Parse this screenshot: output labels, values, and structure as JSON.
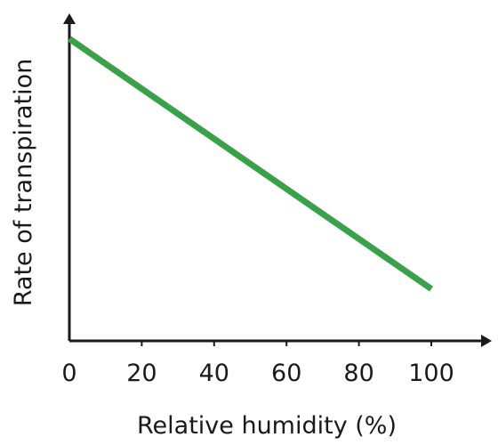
{
  "chart_data": {
    "type": "line",
    "title": "",
    "xlabel": "Relative humidity (%)",
    "ylabel": "Rate of transpiration",
    "x_ticks": [
      0,
      20,
      40,
      60,
      80,
      100
    ],
    "xlim": [
      0,
      100
    ],
    "ylim": [
      0,
      1
    ],
    "y_ticks_labeled": false,
    "grid": false,
    "legend": "none",
    "series": [
      {
        "x": [
          0,
          100
        ],
        "y": [
          0.93,
          0.16
        ],
        "color": "#3aa14a"
      }
    ]
  }
}
